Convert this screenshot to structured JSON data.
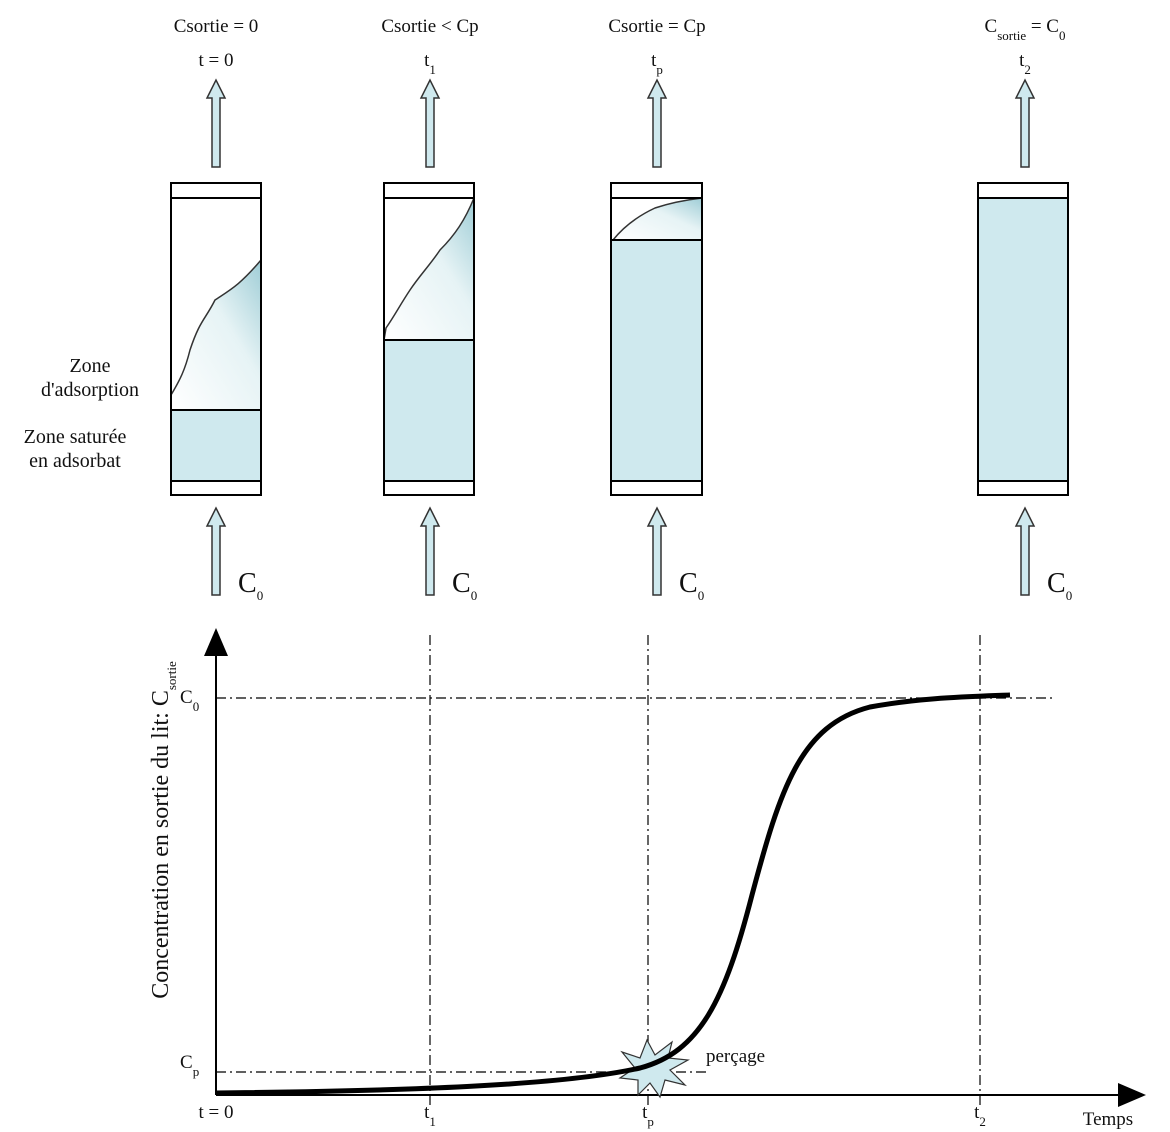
{
  "columns": [
    {
      "outlet": [
        "Csortie = 0"
      ],
      "time": [
        "t = 0"
      ],
      "inlet": [
        "C",
        "0"
      ]
    },
    {
      "outlet": [
        "Csortie < Cp"
      ],
      "time": [
        "t",
        "1"
      ],
      "inlet": [
        "C",
        "0"
      ]
    },
    {
      "outlet": [
        "Csortie = Cp"
      ],
      "time": [
        "t",
        "p"
      ],
      "inlet": [
        "C",
        "0"
      ]
    },
    {
      "outlet": [
        "C",
        "sortie",
        " = C",
        "0"
      ],
      "time": [
        "t",
        "2"
      ],
      "inlet": [
        "C",
        "0"
      ]
    }
  ],
  "zone_labels": {
    "adsorption": [
      "Zone",
      "d'adsorption"
    ],
    "saturated": [
      "Zone saturée",
      "en adsorbat"
    ]
  },
  "graph": {
    "y_axis_label": [
      "Concentration en sortie du lit: C",
      "sortie"
    ],
    "y_labels": [
      [
        "C",
        "0"
      ],
      [
        "C",
        "p"
      ]
    ],
    "x_labels": [
      [
        "t = 0"
      ],
      [
        "t",
        "1"
      ],
      [
        "t",
        "p"
      ],
      [
        "t",
        "2"
      ]
    ],
    "x_axis_label": "Temps",
    "annotation": "perçage"
  }
}
